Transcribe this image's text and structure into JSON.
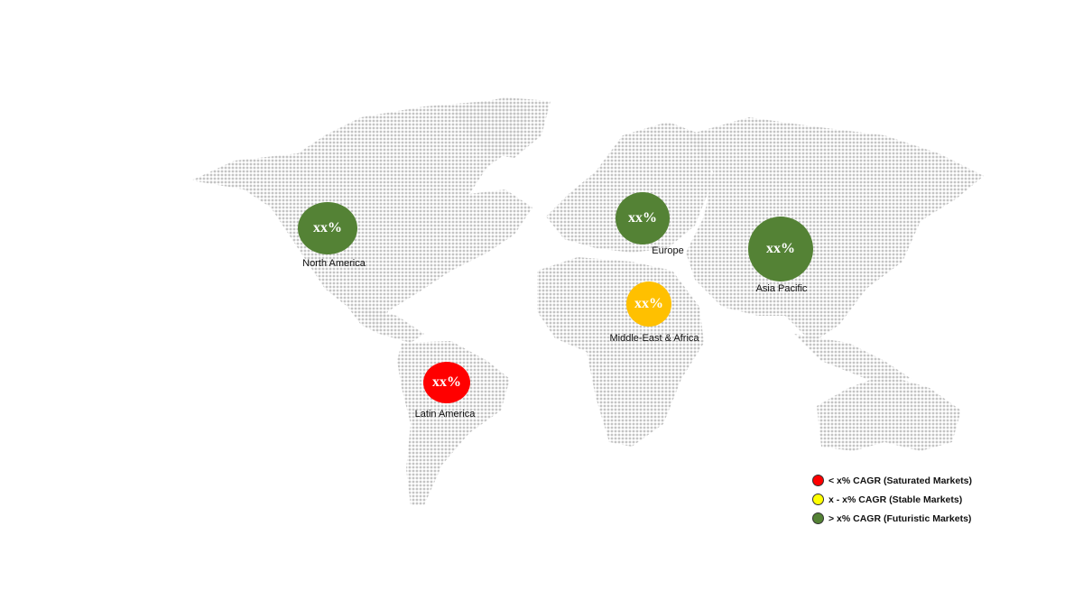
{
  "regions": [
    {
      "name": "North America",
      "value": "xx%",
      "color": "#548235"
    },
    {
      "name": "Europe",
      "value": "xx%",
      "color": "#548235"
    },
    {
      "name": "Asia Pacific",
      "value": "xx%",
      "color": "#548235"
    },
    {
      "name": "Middle-East & Africa",
      "value": "xx%",
      "color": "#FFC000"
    },
    {
      "name": "Latin America",
      "value": "xx%",
      "color": "#FF0000"
    }
  ],
  "legend": [
    {
      "label": "< x% CAGR (Saturated Markets)",
      "color": "#FF0000"
    },
    {
      "label": "x - x% CAGR (Stable Markets)",
      "color": "#FFFF00"
    },
    {
      "label": "> x% CAGR (Futuristic Markets)",
      "color": "#548235"
    }
  ],
  "map_color": "#c8c8c8"
}
